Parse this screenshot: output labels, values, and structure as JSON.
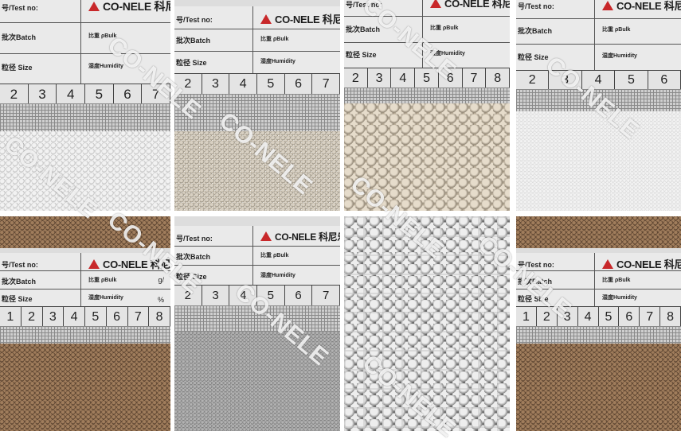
{
  "card": {
    "brand": "CO-NELE",
    "brand_cn": "科尼乐",
    "test_no": "号/Test no:",
    "batch": "批次Batch",
    "size": "粒径 Size",
    "bulk": "比重 ρBulk",
    "humidity": "湿度Humidity",
    "bulk_unit": "g/",
    "humidity_unit": "%"
  },
  "watermark": "CO-NELE",
  "panels": [
    {
      "name": "white-granules-sample",
      "numbers": [
        "2",
        "3",
        "4",
        "5",
        "6",
        "7"
      ],
      "granule_color": "#f2f2f2",
      "granule_shade": "#bdbdbd",
      "ground": "#e6e6e6"
    },
    {
      "name": "beige-granules-sample",
      "numbers": [
        "2",
        "3",
        "4",
        "5",
        "6",
        "7"
      ],
      "granule_color": "#d8d0c2",
      "granule_shade": "#8e8677",
      "ground": "#f4f4f4"
    },
    {
      "name": "large-beige-balls-sample",
      "numbers": [
        "2",
        "3",
        "4",
        "5",
        "6",
        "7",
        "8"
      ],
      "granule_color": "#e6dccb",
      "granule_shade": "#8f8473",
      "ground": "#b8ab96"
    },
    {
      "name": "fine-white-powder-sample",
      "numbers": [
        "2",
        "3",
        "4",
        "5",
        "6"
      ],
      "granule_color": "#f3f3f3",
      "granule_shade": "#d0d0d0",
      "ground": "#e8e8e8"
    },
    {
      "name": "brown-granules-sample",
      "numbers": [
        "1",
        "2",
        "3",
        "4",
        "5",
        "6",
        "7",
        "8"
      ],
      "granule_color": "#a07d5c",
      "granule_shade": "#4a3525",
      "ground": "#6b5039"
    },
    {
      "name": "grey-granules-sample",
      "numbers": [
        "2",
        "3",
        "4",
        "5",
        "6",
        "7"
      ],
      "granule_color": "#b3b3b3",
      "granule_shade": "#6a6a6a",
      "ground": "#9a9a9a"
    },
    {
      "name": "white-pebbles-on-mesh-sample",
      "numbers": [],
      "granule_color": "#eeeeee",
      "granule_shade": "#8a8a8a",
      "ground": "#6e6e6e"
    },
    {
      "name": "brown-granules-sample-2",
      "numbers": [
        "1",
        "2",
        "3",
        "4",
        "5",
        "6",
        "7",
        "8"
      ],
      "granule_color": "#a07d5c",
      "granule_shade": "#4a3525",
      "ground": "#6b5039"
    }
  ]
}
